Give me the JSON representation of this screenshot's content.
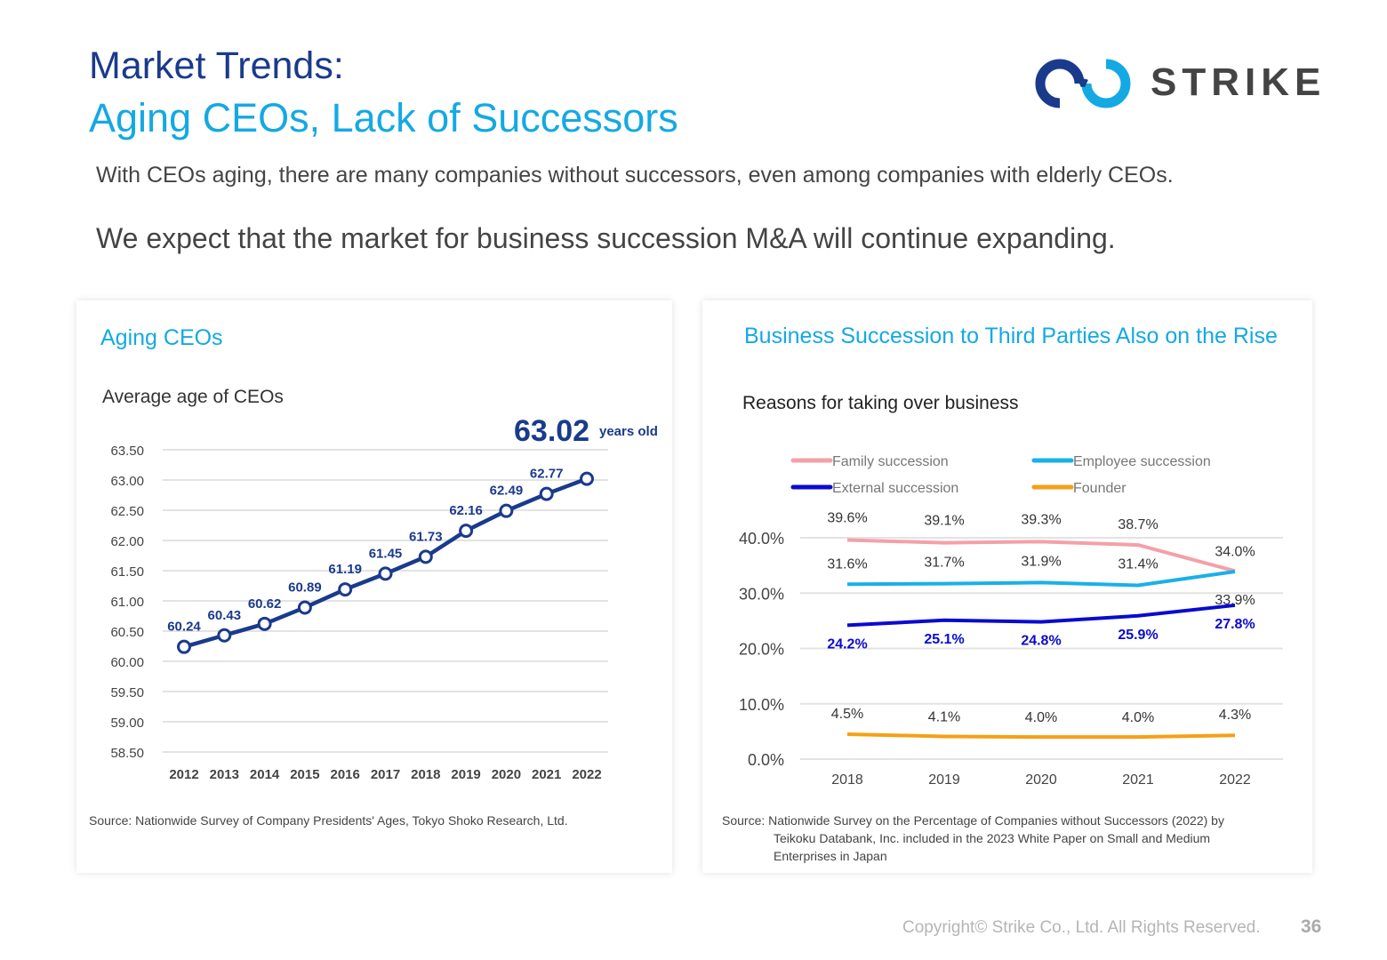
{
  "header": {
    "title_line1": "Market Trends:",
    "title_line2": "Aging CEOs, Lack of Successors",
    "logo_text": "STRIKE",
    "brand_colors": {
      "dark_blue": "#1a3a8c",
      "light_blue": "#14a9e3"
    }
  },
  "intro": {
    "line1": "With CEOs aging, there are many companies without successors, even among companies with elderly CEOs.",
    "line2": "We expect that the market for business succession M&A will continue expanding."
  },
  "left_card": {
    "title": "Aging CEOs",
    "subtitle": "Average age of CEOs",
    "highlight_value": "63.02",
    "highlight_unit": "years old",
    "source": "Source: Nationwide Survey of Company Presidents' Ages, Tokyo Shoko Research, Ltd."
  },
  "right_card": {
    "title": "Business Succession to Third Parties Also on the Rise",
    "subtitle": "Reasons for taking over business",
    "source_line1": "Source: Nationwide Survey on the Percentage of Companies without Successors (2022) by",
    "source_line2": "Teikoku Databank, Inc. included in the 2023 White Paper on Small and Medium",
    "source_line3": "Enterprises in Japan"
  },
  "footer": {
    "copyright": "Copyright© Strike Co., Ltd. All Rights Reserved.",
    "page_number": "36"
  },
  "chart_data": [
    {
      "type": "line",
      "title": "Average age of CEOs",
      "xlabel": "",
      "ylabel": "",
      "categories": [
        "2012",
        "2013",
        "2014",
        "2015",
        "2016",
        "2017",
        "2018",
        "2019",
        "2020",
        "2021",
        "2022"
      ],
      "values": [
        60.24,
        60.43,
        60.62,
        60.89,
        61.19,
        61.45,
        61.73,
        62.16,
        62.49,
        62.77,
        63.02
      ],
      "data_labels": [
        "60.24",
        "60.43",
        "60.62",
        "60.89",
        "61.19",
        "61.45",
        "61.73",
        "62.16",
        "62.49",
        "62.77",
        ""
      ],
      "ylim": [
        58.5,
        63.5
      ],
      "yticks": [
        "63.50",
        "63.00",
        "62.50",
        "62.00",
        "61.50",
        "61.00",
        "60.50",
        "60.00",
        "59.50",
        "59.00",
        "58.50"
      ],
      "ytick_values": [
        63.5,
        63.0,
        62.5,
        62.0,
        61.5,
        61.0,
        60.5,
        60.0,
        59.5,
        59.0,
        58.5
      ],
      "grid": true,
      "color": "#1a3a8c"
    },
    {
      "type": "line",
      "title": "Reasons for taking over business",
      "categories": [
        "2018",
        "2019",
        "2020",
        "2021",
        "2022"
      ],
      "ylim": [
        0,
        40
      ],
      "yticks": [
        "40.0%",
        "30.0%",
        "20.0%",
        "10.0%",
        "0.0%"
      ],
      "ytick_values": [
        40,
        30,
        20,
        10,
        0
      ],
      "grid": true,
      "legend_position": "top",
      "series": [
        {
          "name": "Family succession",
          "color": "#f4a0a8",
          "values": [
            39.6,
            39.1,
            39.3,
            38.7,
            34.0
          ],
          "labels": [
            "39.6%",
            "39.1%",
            "39.3%",
            "38.7%",
            "34.0%"
          ],
          "label_style": "normal"
        },
        {
          "name": "Employee succession",
          "color": "#1ab0e8",
          "values": [
            31.6,
            31.7,
            31.9,
            31.4,
            33.9
          ],
          "labels": [
            "31.6%",
            "31.7%",
            "31.9%",
            "31.4%",
            "33.9%"
          ],
          "label_style": "normal"
        },
        {
          "name": "External succession",
          "color": "#0a0ad0",
          "values": [
            24.2,
            25.1,
            24.8,
            25.9,
            27.8
          ],
          "labels": [
            "24.2%",
            "25.1%",
            "24.8%",
            "25.9%",
            "27.8%"
          ],
          "label_style": "bold"
        },
        {
          "name": "Founder",
          "color": "#f5a016",
          "values": [
            4.5,
            4.1,
            4.0,
            4.0,
            4.3
          ],
          "labels": [
            "4.5%",
            "4.1%",
            "4.0%",
            "4.0%",
            "4.3%"
          ],
          "label_style": "normal"
        }
      ]
    }
  ]
}
